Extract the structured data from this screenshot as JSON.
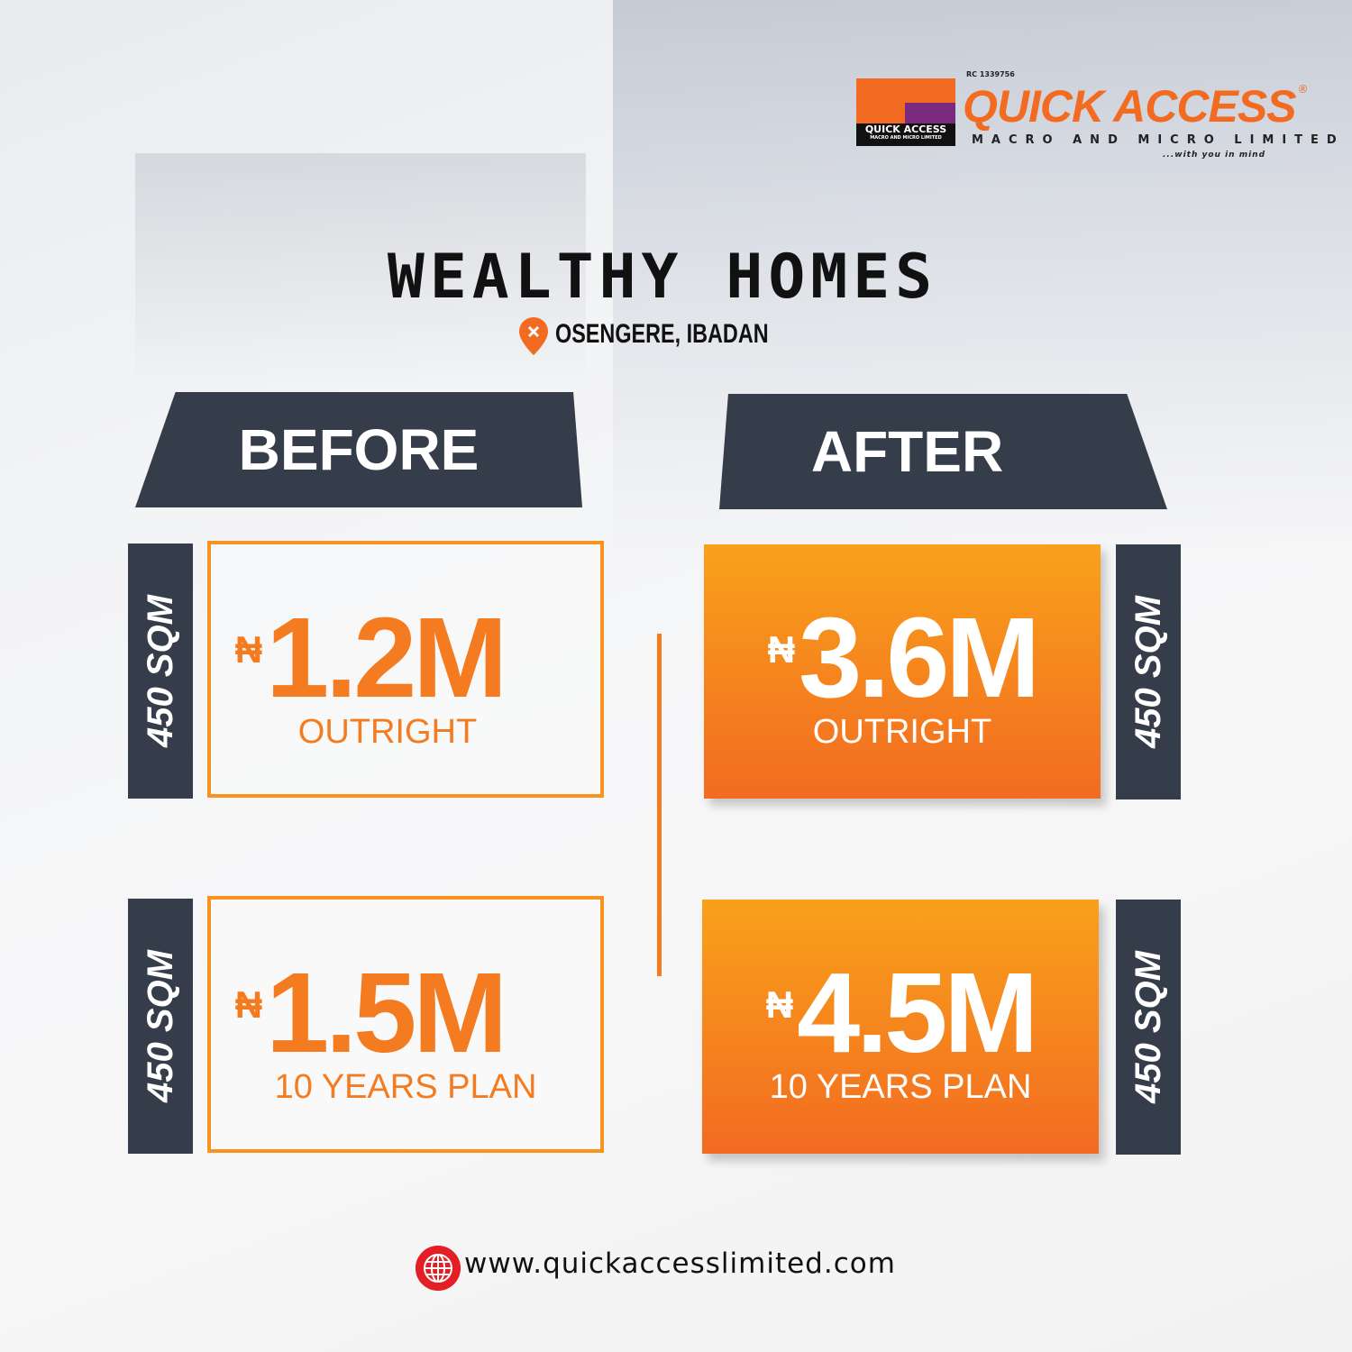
{
  "logo": {
    "rc_number": "RC 1339756",
    "brand": "QUICK ACCESS",
    "registered_mark": "®",
    "subtitle": "MACRO AND MICRO LIMITED",
    "tagline": "...with you in mind",
    "badge_text": "QUICK ACCESS",
    "badge_sub": "MACRO AND MICRO LIMITED"
  },
  "title": "WEALTHY HOMES",
  "location": "OSENGERE, IBADAN",
  "before": {
    "heading": "BEFORE",
    "cards": [
      {
        "size": "450 SQM",
        "currency": "₦",
        "price": "1.2M",
        "plan": "OUTRIGHT"
      },
      {
        "size": "450 SQM",
        "currency": "₦",
        "price": "1.5M",
        "plan": "10 YEARS PLAN"
      }
    ]
  },
  "after": {
    "heading": "AFTER",
    "cards": [
      {
        "size": "450 SQM",
        "currency": "₦",
        "price": "3.6M",
        "plan": "OUTRIGHT"
      },
      {
        "size": "450 SQM",
        "currency": "₦",
        "price": "4.5M",
        "plan": "10 YEARS PLAN"
      }
    ]
  },
  "footer": {
    "website": "www.quickaccesslimited.com"
  },
  "colors": {
    "accent": "#f47b20",
    "dark": "#343d49",
    "brand_purple": "#7b2a80",
    "globe_red": "#e31e24"
  }
}
